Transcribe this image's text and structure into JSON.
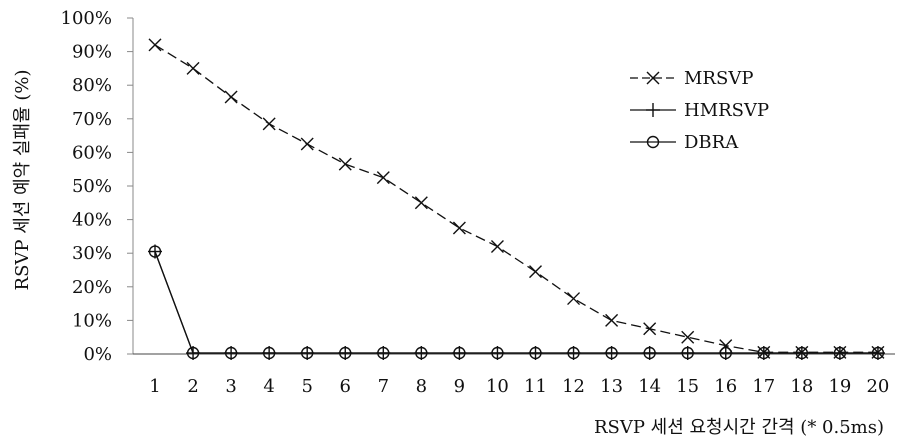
{
  "chart_data": {
    "type": "line",
    "xlabel": "RSVP 세션 요청시간 간격 (* 0.5ms)",
    "ylabel": "RSVP 세션 예약 실패율 (%)",
    "categories": [
      "1",
      "2",
      "3",
      "4",
      "5",
      "6",
      "7",
      "8",
      "9",
      "10",
      "11",
      "12",
      "13",
      "14",
      "15",
      "16",
      "17",
      "18",
      "19",
      "20"
    ],
    "ylim": [
      0,
      100
    ],
    "yticks": [
      "0%",
      "10%",
      "20%",
      "30%",
      "40%",
      "50%",
      "60%",
      "70%",
      "80%",
      "90%",
      "100%"
    ],
    "legend_position": "top-right",
    "grid": false,
    "series": [
      {
        "name": "MRSVP",
        "marker": "x",
        "dash": "dashed",
        "values": [
          92,
          85,
          76.5,
          68.5,
          62.5,
          56.5,
          52.5,
          45,
          37.5,
          32,
          24.5,
          16.5,
          10,
          7.5,
          5,
          2.5,
          0.5,
          0.5,
          0.5,
          0.5
        ]
      },
      {
        "name": "HMRSVP",
        "marker": "plus",
        "dash": "solid",
        "values": [
          30.5,
          0.3,
          0.3,
          0.3,
          0.3,
          0.3,
          0.3,
          0.3,
          0.3,
          0.3,
          0.3,
          0.3,
          0.3,
          0.3,
          0.3,
          0.3,
          0.3,
          0.3,
          0.3,
          0.3
        ]
      },
      {
        "name": "DBRA",
        "marker": "circle",
        "dash": "solid",
        "values": [
          30.5,
          0.3,
          0.3,
          0.3,
          0.3,
          0.3,
          0.3,
          0.3,
          0.3,
          0.3,
          0.3,
          0.3,
          0.3,
          0.3,
          0.3,
          0.3,
          0.3,
          0.3,
          0.3,
          0.3
        ]
      }
    ]
  }
}
